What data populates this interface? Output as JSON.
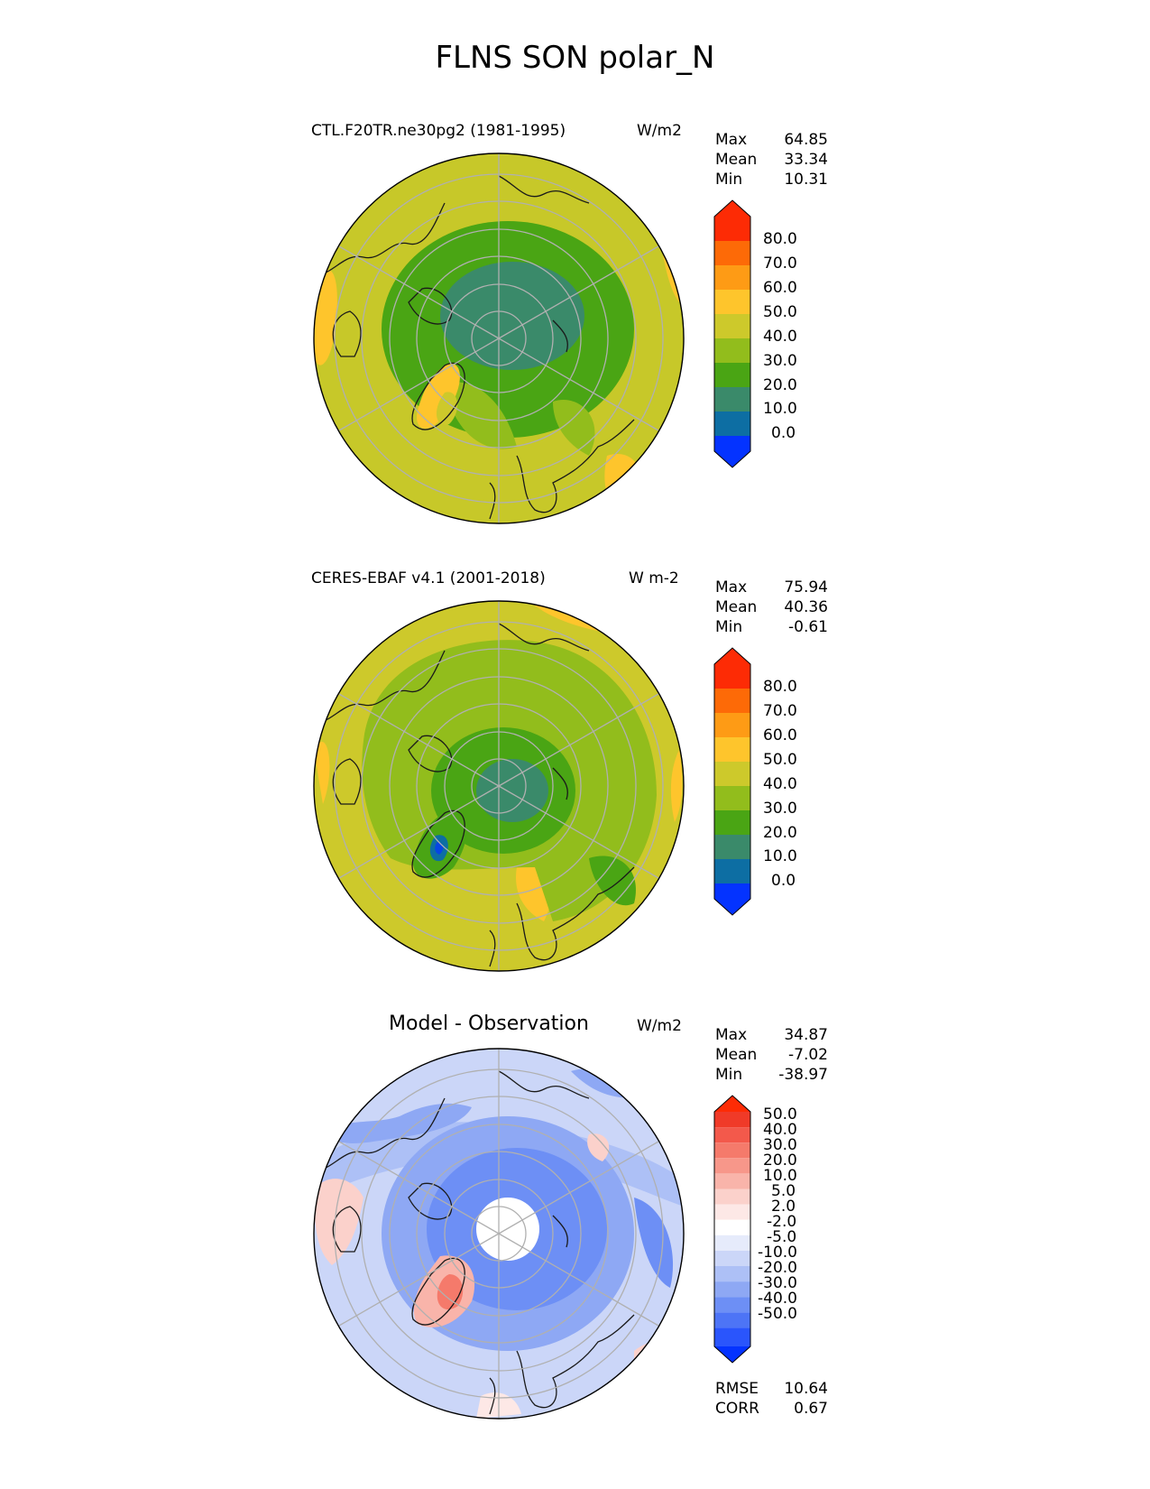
{
  "title": "FLNS SON polar_N",
  "colors": {
    "seq": [
      "#0433ff",
      "#0d6ea3",
      "#3a8a6a",
      "#4aa514",
      "#92bd1c",
      "#cdc92b",
      "#fec52c",
      "#fe9b15",
      "#fd6a07",
      "#fd2b05"
    ],
    "diff": [
      "#0433ff",
      "#2a55fc",
      "#4d74f6",
      "#6d8ff5",
      "#8ea8f4",
      "#adc0f6",
      "#cbd6f8",
      "#e6ebfb",
      "#ffffff",
      "#fde8e6",
      "#fbd1cb",
      "#f9b4aa",
      "#f7978a",
      "#f57a6b",
      "#f3594b",
      "#f03a28",
      "#fd2b05"
    ]
  },
  "panels": [
    {
      "label": "CTL.F20TR.ne30pg2 (1981-1995)",
      "units": "W/m2",
      "stats": [
        {
          "name": "Max",
          "value": "64.85"
        },
        {
          "name": "Mean",
          "value": "33.34"
        },
        {
          "name": "Min",
          "value": "10.31"
        }
      ],
      "colorbar_ticks": [
        "80.0",
        "70.0",
        "60.0",
        "50.0",
        "40.0",
        "30.0",
        "20.0",
        "10.0",
        "0.0"
      ]
    },
    {
      "label": "CERES-EBAF v4.1 (2001-2018)",
      "units": "W m-2",
      "stats": [
        {
          "name": "Max",
          "value": "75.94"
        },
        {
          "name": "Mean",
          "value": "40.36"
        },
        {
          "name": "Min",
          "value": "-0.61"
        }
      ],
      "colorbar_ticks": [
        "80.0",
        "70.0",
        "60.0",
        "50.0",
        "40.0",
        "30.0",
        "20.0",
        "10.0",
        "0.0"
      ]
    },
    {
      "label": "Model - Observation",
      "units": "W/m2",
      "stats": [
        {
          "name": "Max",
          "value": "34.87"
        },
        {
          "name": "Mean",
          "value": "-7.02"
        },
        {
          "name": "Min",
          "value": "-38.97"
        }
      ],
      "colorbar_ticks": [
        "50.0",
        "40.0",
        "30.0",
        "20.0",
        "10.0",
        "5.0",
        "2.0",
        "-2.0",
        "-5.0",
        "-10.0",
        "-20.0",
        "-30.0",
        "-40.0",
        "-50.0"
      ],
      "metrics": [
        {
          "name": "RMSE",
          "value": "10.64"
        },
        {
          "name": "CORR",
          "value": "0.67"
        }
      ]
    }
  ]
}
